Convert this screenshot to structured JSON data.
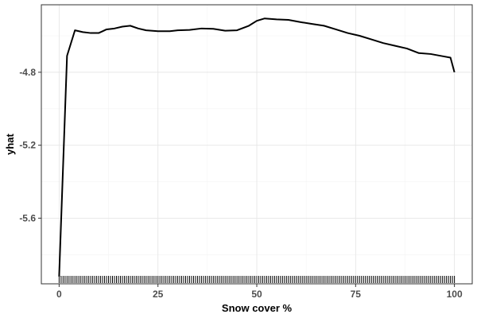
{
  "chart_data": {
    "type": "line",
    "xlabel": "Snow cover %",
    "ylabel": "yhat",
    "xlim": [
      -4.5,
      104.5
    ],
    "ylim": [
      -5.96,
      -4.43
    ],
    "x_ticks": [
      0,
      25,
      50,
      75,
      100
    ],
    "y_ticks": [
      -5.6,
      -5.2,
      -4.8
    ],
    "x_tick_labels": [
      "0",
      "25",
      "50",
      "75",
      "100"
    ],
    "y_tick_labels": [
      "-5.6",
      "-5.2",
      "-4.8"
    ],
    "grid": true,
    "colors": {
      "line": "#000000",
      "rug": "#000000",
      "grid": "#e6e6e6",
      "panel_border": "#333333"
    },
    "series": [
      {
        "x": [
          0,
          2,
          4,
          6,
          8,
          10,
          12,
          14,
          16,
          18,
          20,
          22,
          25,
          28,
          30,
          33,
          36,
          39,
          42,
          45,
          48,
          50,
          52,
          55,
          58,
          61,
          64,
          67,
          70,
          73,
          76,
          79,
          82,
          85,
          88,
          91,
          94,
          97,
          99,
          100
        ],
        "y": [
          -5.92,
          -4.71,
          -4.57,
          -4.58,
          -4.585,
          -4.585,
          -4.565,
          -4.56,
          -4.55,
          -4.545,
          -4.56,
          -4.57,
          -4.575,
          -4.575,
          -4.57,
          -4.568,
          -4.56,
          -4.562,
          -4.572,
          -4.57,
          -4.545,
          -4.518,
          -4.505,
          -4.51,
          -4.513,
          -4.525,
          -4.535,
          -4.545,
          -4.565,
          -4.585,
          -4.6,
          -4.62,
          -4.64,
          -4.655,
          -4.67,
          -4.695,
          -4.7,
          -4.712,
          -4.72,
          -4.8
        ]
      }
    ],
    "rug_x": [
      0,
      0.5,
      1,
      1.5,
      2,
      2.5,
      3,
      3.5,
      4,
      4.5,
      5,
      5.5,
      6,
      6.5,
      7,
      7.5,
      8,
      8.5,
      9,
      9.5,
      10,
      10.5,
      11,
      11.5,
      12,
      12.5,
      13,
      13.5,
      14,
      14.5,
      15,
      15.5,
      16,
      16.5,
      17,
      17.5,
      18,
      18.5,
      19,
      19.5,
      20,
      20.5,
      21,
      21.5,
      22,
      22.5,
      23,
      23.5,
      24,
      24.5,
      25,
      25.5,
      26,
      26.5,
      27,
      27.5,
      28,
      28.5,
      29,
      29.5,
      30,
      30.5,
      31,
      31.5,
      32,
      32.5,
      33,
      33.5,
      34,
      34.5,
      35,
      35.5,
      36,
      36.5,
      37,
      37.5,
      38,
      38.5,
      39,
      39.5,
      40,
      40.5,
      41,
      41.5,
      42,
      42.5,
      43,
      43.5,
      44,
      44.5,
      45,
      45.5,
      46,
      46.5,
      47,
      47.5,
      48,
      48.5,
      49,
      49.5,
      50,
      50.5,
      51,
      51.5,
      52,
      52.5,
      53,
      53.5,
      54,
      54.5,
      55,
      55.5,
      56,
      56.5,
      57,
      57.5,
      58,
      58.5,
      59,
      59.5,
      60,
      60.5,
      61,
      61.5,
      62,
      62.5,
      63,
      63.5,
      64,
      64.5,
      65,
      65.5,
      66,
      66.5,
      67,
      67.5,
      68,
      68.5,
      69,
      69.5,
      70,
      70.5,
      71,
      71.5,
      72,
      72.5,
      73,
      73.5,
      74,
      74.5,
      75,
      75.5,
      76,
      76.5,
      77,
      77.5,
      78,
      78.5,
      79,
      79.5,
      80,
      80.5,
      81,
      81.5,
      82,
      82.5,
      83,
      83.5,
      84,
      84.5,
      85,
      85.5,
      86,
      86.5,
      87,
      87.5,
      88,
      88.5,
      89,
      89.5,
      90,
      90.5,
      91,
      91.5,
      92,
      92.5,
      93,
      93.5,
      94,
      94.5,
      95,
      95.5,
      96,
      96.5,
      97,
      97.5,
      98,
      98.5,
      99,
      99.5,
      100
    ]
  }
}
